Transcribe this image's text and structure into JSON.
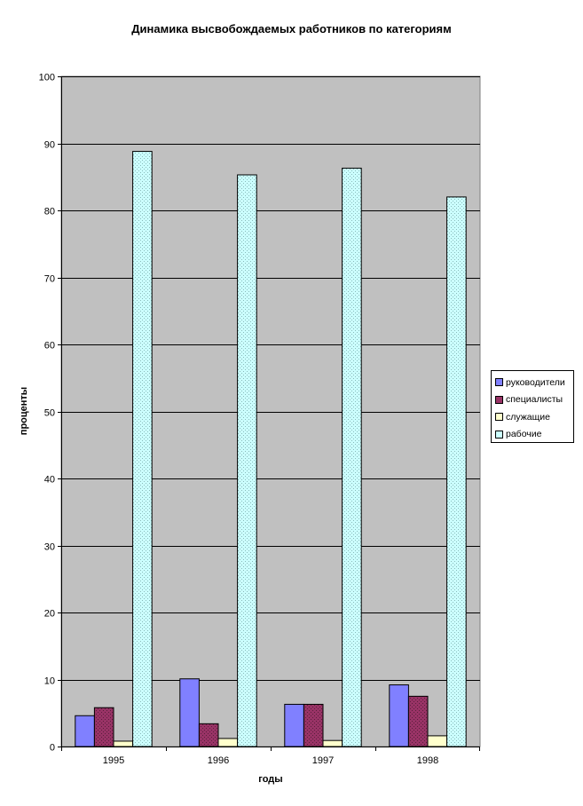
{
  "chart_data": {
    "type": "bar",
    "title": "Динамика высвобождаемых работников по категориям",
    "xlabel": "годы",
    "ylabel": "проценты",
    "categories": [
      "1995",
      "1996",
      "1997",
      "1998"
    ],
    "ylim": [
      0,
      100
    ],
    "yticks": [
      0,
      10,
      20,
      30,
      40,
      50,
      60,
      70,
      80,
      90,
      100
    ],
    "grid": true,
    "legend_position": "right",
    "plot_background": "#C0C0C0",
    "series": [
      {
        "name": "руководители",
        "color": "#8080FF",
        "values": [
          4.6,
          10.1,
          6.3,
          9.2
        ]
      },
      {
        "name": "специалисты",
        "color": "#993366",
        "values": [
          5.8,
          3.4,
          6.3,
          7.5
        ]
      },
      {
        "name": "служащие",
        "color": "#FFFFCC",
        "values": [
          0.8,
          1.2,
          0.9,
          1.6
        ]
      },
      {
        "name": "рабочие",
        "color": "#CCFFFF",
        "values": [
          88.8,
          85.3,
          86.3,
          82.0
        ]
      }
    ]
  }
}
